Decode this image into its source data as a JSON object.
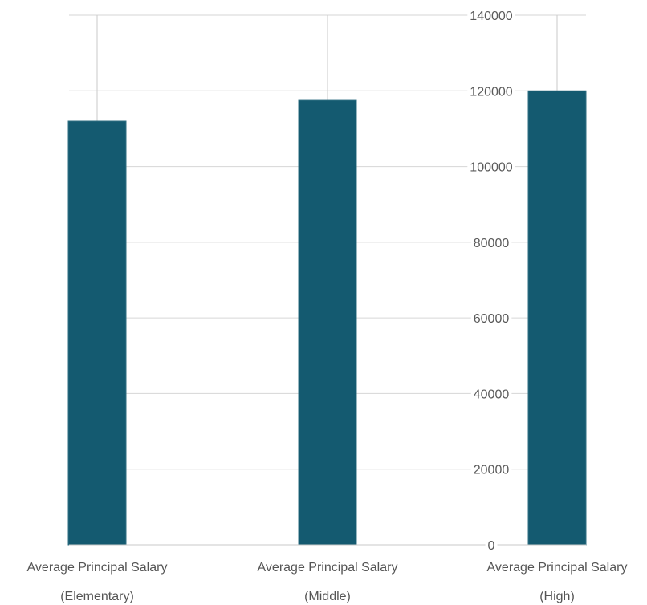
{
  "chart_data": {
    "type": "bar",
    "categories": [
      [
        "Average Principal Salary",
        "(Elementary)"
      ],
      [
        "Average Principal Salary",
        "(Middle)"
      ],
      [
        "Average Principal Salary",
        "(High)"
      ]
    ],
    "values": [
      112000,
      117500,
      120000
    ],
    "ylim": [
      0,
      140000
    ],
    "y_ticks": [
      "0",
      "20000",
      "40000",
      "60000",
      "80000",
      "100000",
      "120000",
      "140000"
    ],
    "y_axis_side": "right",
    "grid": true,
    "bar_color": "#145a70",
    "bar_edge_color": "#2f6f82",
    "grid_color": "#d6d6d6",
    "title": "",
    "xlabel": "",
    "ylabel": ""
  }
}
